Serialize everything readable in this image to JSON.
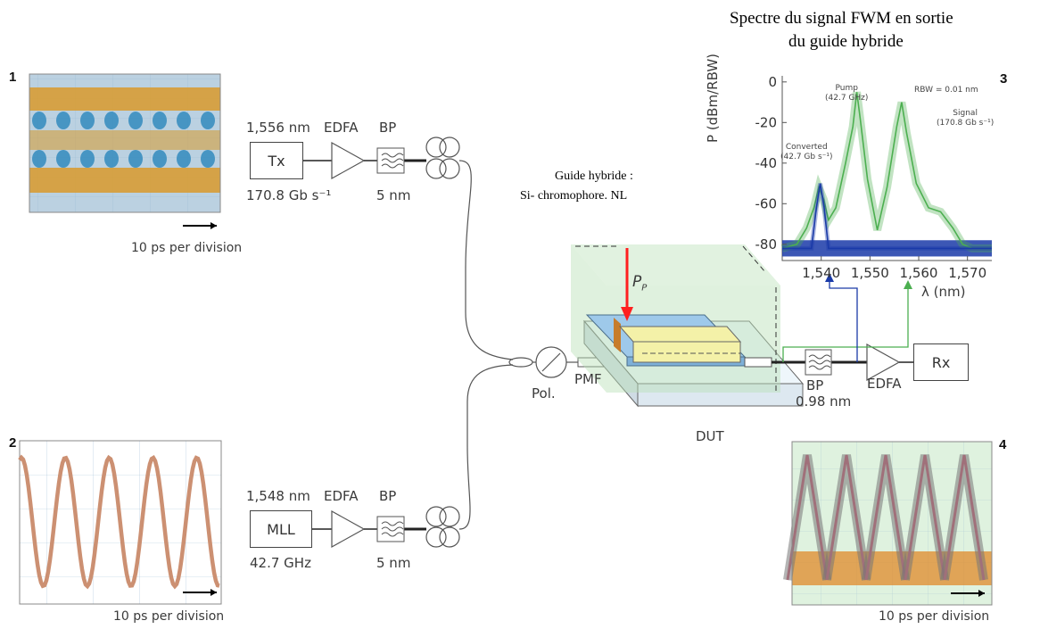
{
  "spectrum_title": [
    "Spectre du signal FWM en sortie",
    "du guide hybride"
  ],
  "guide_label": [
    "Guide hybride :",
    "Si- chromophore. NL"
  ],
  "panels": {
    "p1": {
      "num": "1",
      "caption": "10 ps per division"
    },
    "p2": {
      "num": "2",
      "caption": "10 ps per division"
    },
    "p3": {
      "num": "3"
    },
    "p4": {
      "num": "4",
      "caption": "10 ps per division"
    }
  },
  "top_chain": {
    "wavelength": "1,556 nm",
    "tx": "Tx",
    "rate": "170.8 Gb s⁻¹",
    "edfa": "EDFA",
    "bp": "BP",
    "bp_width": "5 nm"
  },
  "bottom_chain": {
    "wavelength": "1,548 nm",
    "mll": "MLL",
    "rate": "42.7 GHz",
    "edfa": "EDFA",
    "bp": "BP",
    "bp_width": "5 nm"
  },
  "middle": {
    "pol": "Pol.",
    "pmf": "PMF",
    "pp": "P",
    "pp_sub": "P",
    "dut": "DUT"
  },
  "receiver": {
    "bp": "BP",
    "bp_width": "0.98 nm",
    "edfa": "EDFA",
    "rx": "Rx"
  },
  "chart_data": {
    "type": "line",
    "title": "",
    "xlabel": "λ (nm)",
    "ylabel": "P (dBm/RBW)",
    "xlim": [
      1532,
      1575
    ],
    "ylim": [
      -88,
      3
    ],
    "xticks": [
      "1,540",
      "1,550",
      "1,560",
      "1,570"
    ],
    "yticks": [
      "0",
      "-20",
      "-40",
      "-60",
      "-80"
    ],
    "grid": false,
    "series": [
      {
        "color": "#4caf50",
        "x": [
          1532,
          1535,
          1537,
          1538.5,
          1539.5,
          1540.5,
          1541.5,
          1543,
          1545,
          1546.5,
          1547.3,
          1548,
          1549.5,
          1551.5,
          1553.5,
          1555.5,
          1556.5,
          1557.5,
          1559.5,
          1562,
          1564.5,
          1567,
          1569,
          1571,
          1575
        ],
        "y": [
          -82,
          -80,
          -72,
          -62,
          -52,
          -58,
          -68,
          -62,
          -40,
          -22,
          -5,
          -18,
          -48,
          -73,
          -52,
          -22,
          -10,
          -25,
          -50,
          -62,
          -64,
          -72,
          -80,
          -82,
          -82
        ]
      },
      {
        "color": "#1a3aa8",
        "x": [
          1532,
          1538,
          1539,
          1539.8,
          1540.6,
          1541.5,
          1575
        ],
        "y": [
          -82,
          -82,
          -62,
          -50,
          -62,
          -82,
          -82
        ]
      }
    ],
    "annotations": [
      {
        "text": "Pump",
        "text2": "(42.7 GHz)"
      },
      {
        "text": "RBW = 0.01 nm"
      },
      {
        "text": "Signal",
        "text2": "(170.8 Gb s⁻¹)"
      },
      {
        "text": "Converted",
        "text2": "(42.7 Gb s⁻¹)"
      }
    ]
  },
  "colors": {
    "green": "#4caf50",
    "blue": "#1a3aa8",
    "red_arrow": "#ff2020",
    "device_yellow": "#f4f1a8",
    "device_blue": "#9ec9ea"
  }
}
